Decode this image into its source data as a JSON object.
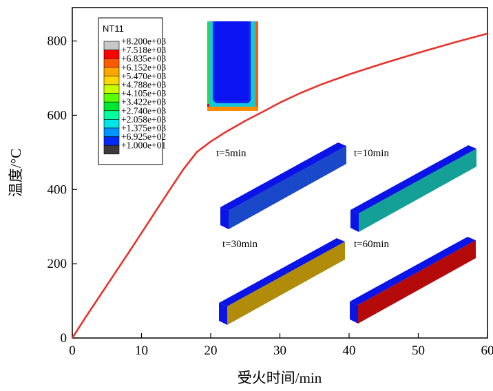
{
  "chart_data": {
    "type": "line",
    "xlabel": "受火时间/min",
    "ylabel": "温度/°C",
    "xlim": [
      0,
      60
    ],
    "ylim": [
      0,
      890
    ],
    "xticks": [
      0,
      10,
      20,
      30,
      40,
      50,
      60
    ],
    "yticks": [
      0,
      200,
      400,
      600,
      800
    ],
    "grid": false,
    "series": [
      {
        "color": "#e8322b",
        "x": [
          0,
          2,
          4,
          6,
          8,
          10,
          12,
          14,
          16,
          18,
          20,
          22,
          25,
          28,
          30,
          33,
          36,
          40,
          45,
          50,
          55,
          60
        ],
        "y": [
          0,
          58,
          114,
          170,
          226,
          283,
          340,
          397,
          453,
          501,
          529,
          553,
          585,
          614,
          634,
          660,
          683,
          710,
          740,
          768,
          795,
          820
        ]
      }
    ],
    "legend": {
      "title": "NT11",
      "placement": "top-left",
      "entries": [
        {
          "label": "+8.200e+03",
          "color": "#c8c8c8"
        },
        {
          "label": "+7.518e+03",
          "color": "#ff0000"
        },
        {
          "label": "+6.835e+03",
          "color": "#ff5a00"
        },
        {
          "label": "+6.152e+03",
          "color": "#ffa500"
        },
        {
          "label": "+5.470e+03",
          "color": "#ffd700"
        },
        {
          "label": "+4.788e+03",
          "color": "#c8ff00"
        },
        {
          "label": "+4.105e+03",
          "color": "#5aff00"
        },
        {
          "label": "+3.422e+03",
          "color": "#00e632"
        },
        {
          "label": "+2.740e+03",
          "color": "#00ff9b"
        },
        {
          "label": "+2.058e+03",
          "color": "#00e6e6"
        },
        {
          "label": "+1.375e+03",
          "color": "#0096ff"
        },
        {
          "label": "+6.925e+02",
          "color": "#0028ff"
        },
        {
          "label": "+1.000e+01",
          "color": "#3a3a3a"
        }
      ]
    },
    "insets": [
      {
        "label": "t=5min",
        "face_color": "#1948c8"
      },
      {
        "label": "t=10min",
        "face_color": "#14a096"
      },
      {
        "label": "t=30min",
        "face_color": "#b08c0a"
      },
      {
        "label": "t=60min",
        "face_color": "#b40a0a"
      }
    ]
  }
}
